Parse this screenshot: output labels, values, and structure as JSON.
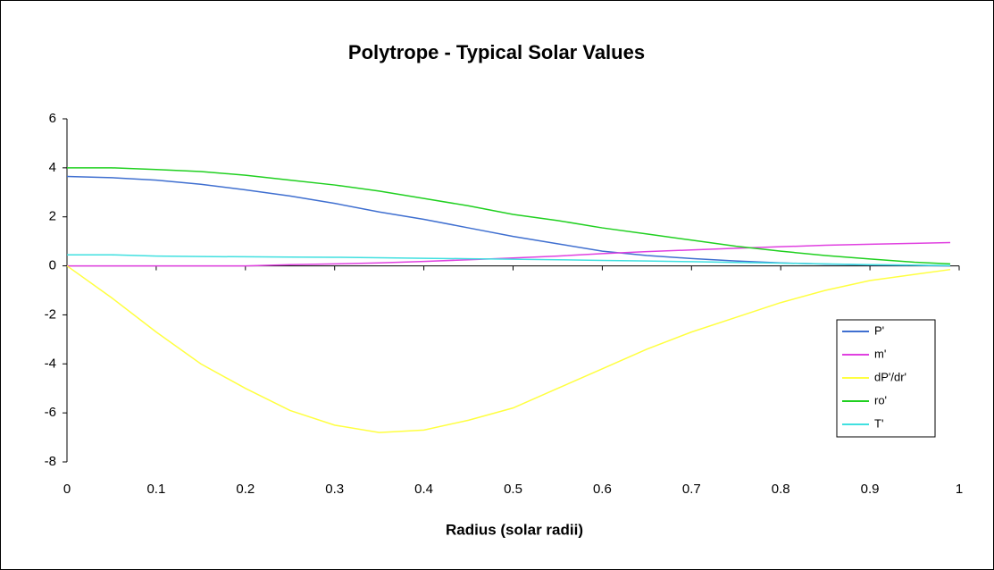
{
  "chart_data": {
    "type": "line",
    "title": "Polytrope - Typical Solar Values",
    "x_label": "Radius (solar radii)",
    "x": [
      0,
      0.05,
      0.1,
      0.15,
      0.2,
      0.25,
      0.3,
      0.35,
      0.4,
      0.45,
      0.5,
      0.55,
      0.6,
      0.65,
      0.7,
      0.75,
      0.8,
      0.85,
      0.9,
      0.95,
      0.99
    ],
    "series": [
      {
        "name": "P'",
        "color": "#3f6fd0",
        "values": [
          3.65,
          3.6,
          3.5,
          3.33,
          3.1,
          2.85,
          2.55,
          2.2,
          1.9,
          1.55,
          1.2,
          0.9,
          0.6,
          0.42,
          0.3,
          0.2,
          0.12,
          0.07,
          0.04,
          0.02,
          0
        ]
      },
      {
        "name": "m'",
        "color": "#e040e0",
        "values": [
          0,
          0,
          0,
          0,
          0,
          0.05,
          0.08,
          0.12,
          0.18,
          0.25,
          0.32,
          0.4,
          0.5,
          0.58,
          0.65,
          0.72,
          0.78,
          0.84,
          0.88,
          0.92,
          0.95
        ]
      },
      {
        "name": "dP'/dr'",
        "color": "#ffff40",
        "values": [
          0,
          -1.3,
          -2.7,
          -4.0,
          -5.0,
          -5.9,
          -6.5,
          -6.8,
          -6.7,
          -6.3,
          -5.8,
          -5.0,
          -4.2,
          -3.4,
          -2.7,
          -2.1,
          -1.5,
          -1.0,
          -0.6,
          -0.35,
          -0.15
        ]
      },
      {
        "name": "ro'",
        "color": "#20d020",
        "values": [
          4.0,
          4.0,
          3.93,
          3.85,
          3.7,
          3.5,
          3.3,
          3.05,
          2.75,
          2.45,
          2.1,
          1.85,
          1.55,
          1.3,
          1.05,
          0.8,
          0.6,
          0.42,
          0.28,
          0.15,
          0.08
        ]
      },
      {
        "name": "T'",
        "color": "#40e0e0",
        "values": [
          0.45,
          0.45,
          0.4,
          0.38,
          0.37,
          0.36,
          0.35,
          0.33,
          0.31,
          0.29,
          0.27,
          0.25,
          0.22,
          0.2,
          0.17,
          0.14,
          0.11,
          0.08,
          0.05,
          0.03,
          0.01
        ]
      }
    ],
    "xlim": [
      0,
      1
    ],
    "xticks": [
      0,
      0.1,
      0.2,
      0.3,
      0.4,
      0.5,
      0.6,
      0.7,
      0.8,
      0.9,
      1
    ],
    "ylim": [
      -8,
      6
    ],
    "yticks": [
      -8,
      -6,
      -4,
      -2,
      0,
      2,
      4,
      6
    ],
    "grid": false,
    "legend": "right"
  }
}
